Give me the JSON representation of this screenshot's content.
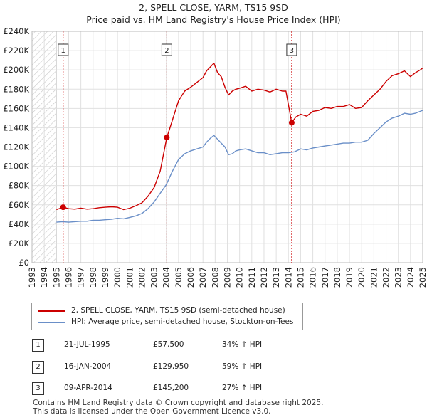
{
  "title": {
    "line1": "2, SPELL CLOSE, YARM, TS15 9SD",
    "line2": "Price paid vs. HM Land Registry's House Price Index (HPI)"
  },
  "colors": {
    "property": "#cc0000",
    "hpi": "#6a8fc8",
    "grid": "#dddddd",
    "shade": "#888888"
  },
  "chart_data": {
    "type": "line",
    "title": "Price paid vs. HM Land Registry's House Price Index (HPI)",
    "xlabel": "",
    "ylabel": "",
    "xlim": [
      1993,
      2025
    ],
    "ylim": [
      0,
      240000
    ],
    "y_ticks": [
      0,
      20000,
      40000,
      60000,
      80000,
      100000,
      120000,
      140000,
      160000,
      180000,
      200000,
      220000,
      240000
    ],
    "y_tick_labels": [
      "£0",
      "£20K",
      "£40K",
      "£60K",
      "£80K",
      "£100K",
      "£120K",
      "£140K",
      "£160K",
      "£180K",
      "£200K",
      "£220K",
      "£240K"
    ],
    "x_ticks": [
      1993,
      1994,
      1995,
      1996,
      1997,
      1998,
      1999,
      2000,
      2001,
      2002,
      2003,
      2004,
      2005,
      2006,
      2007,
      2008,
      2009,
      2010,
      2011,
      2012,
      2013,
      2014,
      2015,
      2016,
      2017,
      2018,
      2019,
      2020,
      2021,
      2022,
      2023,
      2024,
      2025
    ],
    "x_tick_labels": [
      "1993",
      "1994",
      "1995",
      "1996",
      "1997",
      "1998",
      "1999",
      "2000",
      "2001",
      "2002",
      "2003",
      "2004",
      "2005",
      "2006",
      "2007",
      "2008",
      "2009",
      "2010",
      "2011",
      "2012",
      "2013",
      "2014",
      "2015",
      "2016",
      "2017",
      "2018",
      "2019",
      "2020",
      "2021",
      "2022",
      "2023",
      "2024",
      "2025"
    ],
    "shaded_until": 1995.0,
    "series": [
      {
        "name": "2, SPELL CLOSE, YARM, TS15 9SD (semi-detached house)",
        "color": "#cc0000",
        "x": [
          1995.0,
          1995.55,
          1996.0,
          1996.5,
          1997.0,
          1997.5,
          1998.0,
          1998.5,
          1999.0,
          1999.5,
          2000.0,
          2000.5,
          2001.0,
          2001.5,
          2002.0,
          2002.5,
          2003.0,
          2003.5,
          2004.04,
          2004.3,
          2004.6,
          2005.0,
          2005.5,
          2006.0,
          2006.5,
          2007.0,
          2007.3,
          2007.6,
          2007.9,
          2008.2,
          2008.5,
          2008.8,
          2009.1,
          2009.4,
          2009.7,
          2010.0,
          2010.5,
          2011.0,
          2011.5,
          2012.0,
          2012.5,
          2013.0,
          2013.5,
          2013.8,
          2014.27,
          2014.6,
          2015.0,
          2015.5,
          2016.0,
          2016.5,
          2017.0,
          2017.5,
          2018.0,
          2018.5,
          2019.0,
          2019.5,
          2020.0,
          2020.5,
          2021.0,
          2021.5,
          2022.0,
          2022.5,
          2023.0,
          2023.5,
          2024.0,
          2024.4,
          2024.8,
          2025.0
        ],
        "values": [
          55000,
          57500,
          56000,
          55500,
          56500,
          55500,
          56000,
          57000,
          57500,
          58000,
          57500,
          55000,
          56500,
          59000,
          62000,
          69000,
          78000,
          95000,
          129950,
          140000,
          152000,
          168000,
          178000,
          182000,
          187000,
          192000,
          199000,
          203000,
          207000,
          197000,
          193000,
          182000,
          174000,
          178000,
          180000,
          181000,
          183000,
          178000,
          180000,
          179000,
          177000,
          180000,
          178000,
          178000,
          145200,
          151000,
          154000,
          152000,
          157000,
          158000,
          161000,
          160000,
          162000,
          162000,
          164000,
          160000,
          161000,
          168000,
          174000,
          180000,
          188000,
          194000,
          196000,
          199000,
          193000,
          197000,
          200000,
          202000
        ]
      },
      {
        "name": "HPI: Average price, semi-detached house, Stockton-on-Tees",
        "color": "#6a8fc8",
        "x": [
          1995.0,
          1995.5,
          1996.0,
          1996.5,
          1997.0,
          1997.5,
          1998.0,
          1998.5,
          1999.0,
          1999.5,
          2000.0,
          2000.5,
          2001.0,
          2001.5,
          2002.0,
          2002.5,
          2003.0,
          2003.5,
          2004.0,
          2004.5,
          2005.0,
          2005.5,
          2006.0,
          2006.5,
          2007.0,
          2007.3,
          2007.6,
          2007.9,
          2008.2,
          2008.5,
          2008.8,
          2009.1,
          2009.4,
          2009.7,
          2010.0,
          2010.5,
          2011.0,
          2011.5,
          2012.0,
          2012.5,
          2013.0,
          2013.5,
          2014.0,
          2014.5,
          2015.0,
          2015.5,
          2016.0,
          2016.5,
          2017.0,
          2017.5,
          2018.0,
          2018.5,
          2019.0,
          2019.5,
          2020.0,
          2020.5,
          2021.0,
          2021.5,
          2022.0,
          2022.5,
          2023.0,
          2023.5,
          2024.0,
          2024.4,
          2024.8,
          2025.0
        ],
        "values": [
          42000,
          42500,
          42000,
          42500,
          43000,
          43000,
          44000,
          44000,
          44500,
          45000,
          46000,
          45500,
          47000,
          48500,
          51000,
          56000,
          63000,
          72000,
          81000,
          95000,
          107000,
          113000,
          116000,
          118000,
          120000,
          125000,
          129000,
          132000,
          128000,
          124000,
          120000,
          112000,
          113000,
          116000,
          117000,
          118000,
          116000,
          114000,
          114000,
          112000,
          113000,
          114000,
          114000,
          115000,
          118000,
          117000,
          119000,
          120000,
          121000,
          122000,
          123000,
          124000,
          124000,
          125000,
          125000,
          127000,
          134000,
          140000,
          146000,
          150000,
          152000,
          155000,
          154000,
          155000,
          157000,
          158000
        ]
      }
    ],
    "sales": [
      {
        "label": "1",
        "x": 1995.55,
        "value": 57500
      },
      {
        "label": "2",
        "x": 2004.04,
        "value": 129950
      },
      {
        "label": "3",
        "x": 2014.27,
        "value": 145200
      }
    ]
  },
  "legend": {
    "property_label": "2, SPELL CLOSE, YARM, TS15 9SD (semi-detached house)",
    "hpi_label": "HPI: Average price, semi-detached house, Stockton-on-Tees"
  },
  "sales_table": [
    {
      "num": "1",
      "date": "21-JUL-1995",
      "price": "£57,500",
      "hpi": "34% ↑ HPI"
    },
    {
      "num": "2",
      "date": "16-JAN-2004",
      "price": "£129,950",
      "hpi": "59% ↑ HPI"
    },
    {
      "num": "3",
      "date": "09-APR-2014",
      "price": "£145,200",
      "hpi": "27% ↑ HPI"
    }
  ],
  "footer": {
    "line1": "Contains HM Land Registry data © Crown copyright and database right 2025.",
    "line2": "This data is licensed under the Open Government Licence v3.0."
  }
}
